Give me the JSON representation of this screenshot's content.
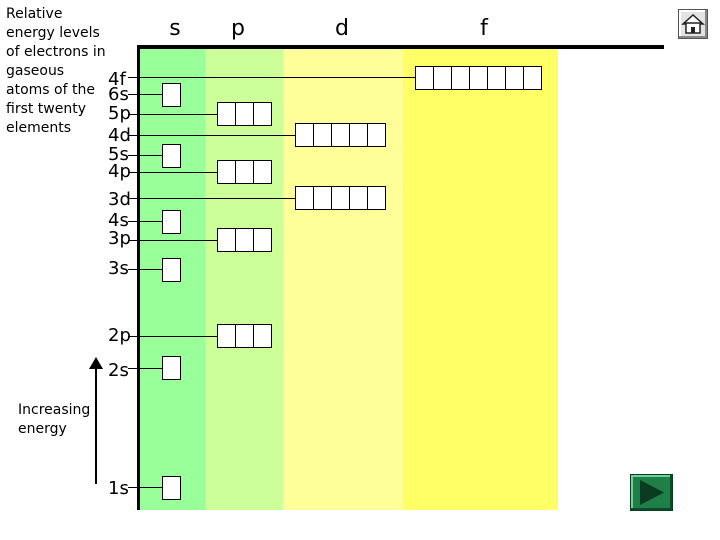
{
  "caption": [
    "Relative",
    "energy levels",
    "of electrons in",
    "gaseous",
    "atoms of the",
    "first twenty",
    "elements"
  ],
  "columns": [
    {
      "id": "s",
      "label": "s",
      "color": "#99ff99"
    },
    {
      "id": "p",
      "label": "p",
      "color": "#ccff99"
    },
    {
      "id": "d",
      "label": "d",
      "color": "#ffff99"
    },
    {
      "id": "f",
      "label": "f",
      "color": "#ffff66"
    }
  ],
  "levels": [
    {
      "label": "4f",
      "block": "f",
      "boxes": 7
    },
    {
      "label": "6s",
      "block": "s",
      "boxes": 1
    },
    {
      "label": "5p",
      "block": "p",
      "boxes": 3
    },
    {
      "label": "4d",
      "block": "d",
      "boxes": 5
    },
    {
      "label": "5s",
      "block": "s",
      "boxes": 1
    },
    {
      "label": "4p",
      "block": "p",
      "boxes": 3
    },
    {
      "label": "3d",
      "block": "d",
      "boxes": 5
    },
    {
      "label": "4s",
      "block": "s",
      "boxes": 1
    },
    {
      "label": "3p",
      "block": "p",
      "boxes": 3
    },
    {
      "label": "3s",
      "block": "s",
      "boxes": 1
    },
    {
      "label": "2p",
      "block": "p",
      "boxes": 3
    },
    {
      "label": "2s",
      "block": "s",
      "boxes": 1
    },
    {
      "label": "1s",
      "block": "s",
      "boxes": 1
    }
  ],
  "axis_label": [
    "Increasing",
    "energy"
  ],
  "nav": {
    "home_icon": "home-icon",
    "next_icon": "play-arrow-icon"
  }
}
